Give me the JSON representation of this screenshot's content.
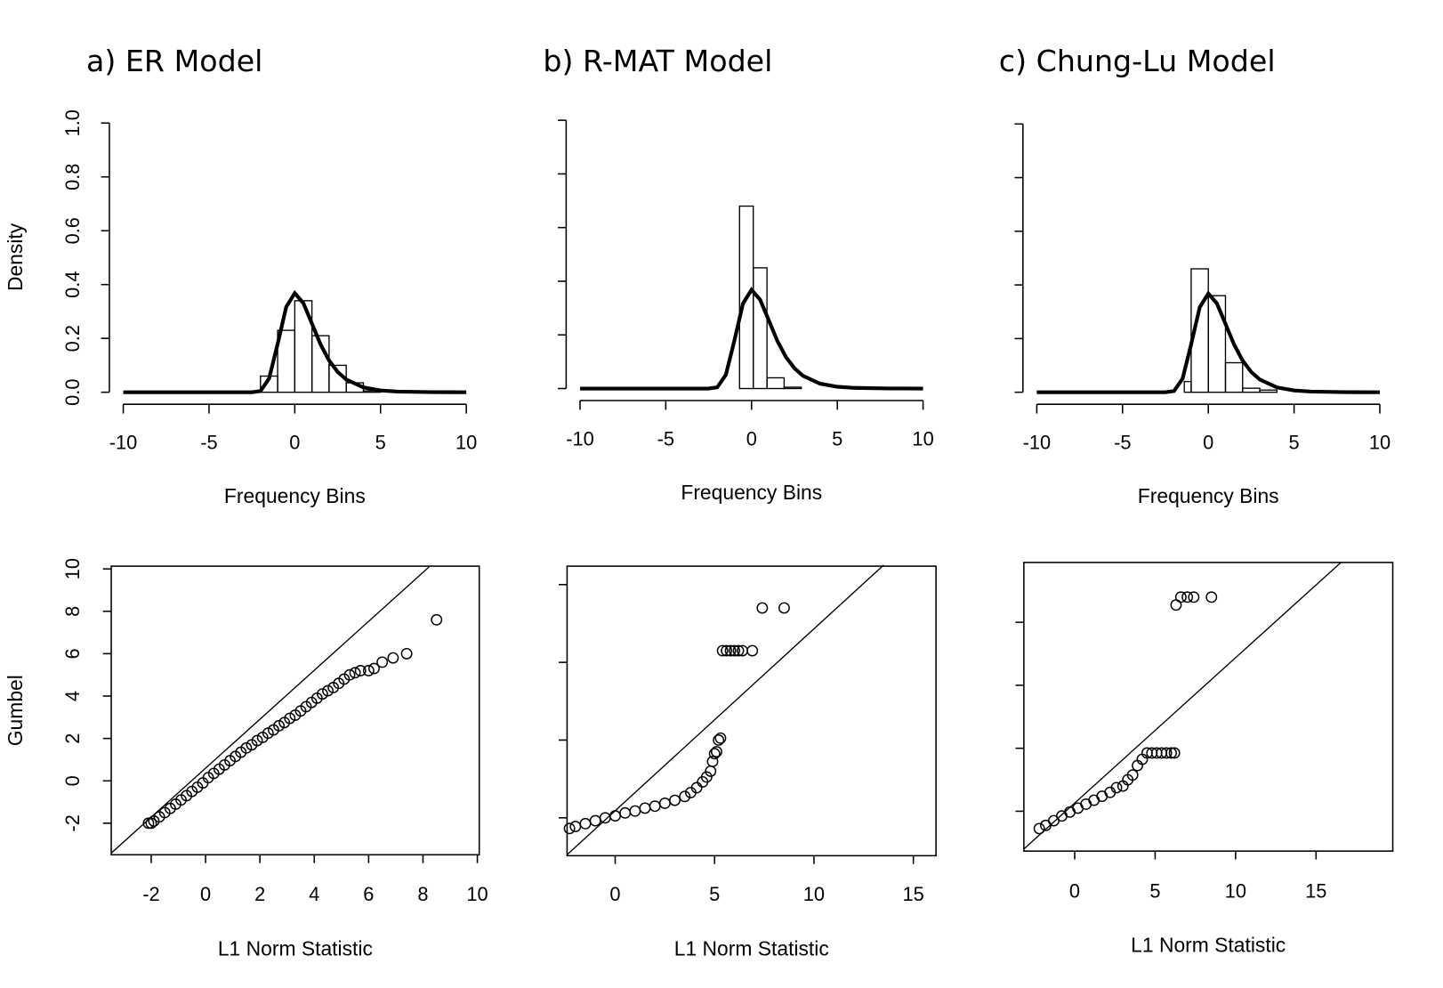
{
  "chart_data": [
    {
      "type": "histogram",
      "title": "a)  ER Model",
      "xlabel": "Frequency Bins",
      "ylabel": "Density",
      "bins": [
        -2,
        -1,
        0,
        1,
        2,
        3,
        4,
        5
      ],
      "counts": [
        0.06,
        0.23,
        0.34,
        0.21,
        0.1,
        0.035,
        0.005
      ],
      "curve": {
        "x": [
          -10,
          -3,
          -2.5,
          -2,
          -1.5,
          -1,
          -0.5,
          0,
          0.5,
          1,
          1.5,
          2,
          2.5,
          3,
          4,
          5,
          6,
          8,
          10
        ],
        "y": [
          0,
          0,
          0.0001,
          0.0046,
          0.0507,
          0.179,
          0.317,
          0.368,
          0.331,
          0.255,
          0.178,
          0.118,
          0.0756,
          0.0474,
          0.018,
          0.0067,
          0.0025,
          0.0003,
          0
        ]
      },
      "xlim": [
        -10,
        10
      ],
      "xticks": [
        -10,
        -5,
        0,
        5,
        10
      ],
      "ylim": [
        0,
        1
      ],
      "yticks": [
        {
          "value": 0,
          "label": "0.0"
        },
        0.2,
        0.4,
        0.6,
        0.8,
        {
          "value": 1,
          "label": "1.0"
        }
      ],
      "ytick_labels": true
    },
    {
      "type": "histogram",
      "title": "b) R-MAT Model",
      "xlabel": "Frequency Bins",
      "bins": [
        -0.7,
        0.1,
        0.9,
        1.9,
        2.9
      ],
      "counts": [
        0.68,
        0.45,
        0.04,
        0.005
      ],
      "curve": {
        "x": [
          -10,
          -3,
          -2.5,
          -2,
          -1.5,
          -1,
          -0.5,
          0,
          0.5,
          1,
          1.5,
          2,
          2.5,
          3,
          4,
          5,
          6,
          8,
          10
        ],
        "y": [
          0,
          0,
          0.0001,
          0.0046,
          0.0507,
          0.179,
          0.317,
          0.368,
          0.331,
          0.255,
          0.178,
          0.118,
          0.0756,
          0.0474,
          0.018,
          0.0067,
          0.0025,
          0.0003,
          0
        ]
      },
      "xlim": [
        -10,
        10
      ],
      "xticks": [
        -10,
        -5,
        0,
        5,
        10
      ],
      "ylim": [
        0,
        1
      ],
      "yticks": [
        0,
        0.2,
        0.4,
        0.6,
        0.8,
        1
      ],
      "ytick_labels": false
    },
    {
      "type": "histogram",
      "title": "c) Chung-Lu Model",
      "xlabel": "Frequency Bins",
      "bins": [
        -1.4,
        -1,
        0,
        1,
        2,
        3,
        4
      ],
      "counts": [
        0.04,
        0.46,
        0.36,
        0.11,
        0.015,
        0.008
      ],
      "curve": {
        "x": [
          -10,
          -3,
          -2.5,
          -2,
          -1.5,
          -1,
          -0.5,
          0,
          0.5,
          1,
          1.5,
          2,
          2.5,
          3,
          4,
          5,
          6,
          8,
          10
        ],
        "y": [
          0,
          0,
          0.0001,
          0.0046,
          0.0507,
          0.179,
          0.317,
          0.368,
          0.331,
          0.255,
          0.178,
          0.118,
          0.0756,
          0.0474,
          0.018,
          0.0067,
          0.0025,
          0.0003,
          0
        ]
      },
      "xlim": [
        -10,
        10
      ],
      "xticks": [
        -10,
        -5,
        0,
        5,
        10
      ],
      "ylim": [
        0,
        1
      ],
      "yticks": [
        0,
        0.2,
        0.4,
        0.6,
        0.8,
        1
      ],
      "ytick_labels": false
    },
    {
      "type": "scatter",
      "xlabel": "L1 Norm Statistic",
      "ylabel": "Gumbel",
      "x": [
        -2.1,
        -2.0,
        -1.9,
        -1.7,
        -1.5,
        -1.3,
        -1.1,
        -0.9,
        -0.7,
        -0.5,
        -0.3,
        -0.1,
        0.1,
        0.3,
        0.5,
        0.7,
        0.9,
        1.1,
        1.3,
        1.5,
        1.7,
        1.9,
        2.1,
        2.3,
        2.5,
        2.7,
        2.9,
        3.1,
        3.3,
        3.5,
        3.7,
        3.9,
        4.1,
        4.3,
        4.5,
        4.7,
        4.9,
        5.1,
        5.3,
        5.5,
        5.7,
        6.0,
        6.2,
        6.5,
        6.9,
        7.4,
        8.5
      ],
      "y": [
        -2.0,
        -2.0,
        -1.9,
        -1.7,
        -1.5,
        -1.3,
        -1.1,
        -0.9,
        -0.7,
        -0.5,
        -0.3,
        -0.1,
        0.15,
        0.35,
        0.55,
        0.75,
        0.95,
        1.15,
        1.35,
        1.55,
        1.7,
        1.9,
        2.05,
        2.25,
        2.4,
        2.6,
        2.75,
        2.95,
        3.1,
        3.3,
        3.5,
        3.7,
        3.9,
        4.1,
        4.25,
        4.4,
        4.6,
        4.8,
        5.0,
        5.1,
        5.2,
        5.2,
        5.3,
        5.6,
        5.8,
        6.0,
        7.6
      ],
      "ref_line": {
        "x": [
          -3.46,
          8.23
        ],
        "y": [
          -3.4,
          10.1
        ]
      },
      "xlim": [
        -3.47,
        10.07
      ],
      "xticks": [
        -2,
        0,
        2,
        4,
        6,
        8,
        10
      ],
      "ylim": [
        -3.49,
        10.13
      ],
      "yticks": [
        -2,
        0,
        2,
        4,
        6,
        8,
        10
      ],
      "ytick_labels": true
    },
    {
      "type": "scatter",
      "xlabel": "L1 Norm Statistic",
      "x": [
        -2.3,
        -2.0,
        -1.5,
        -1.0,
        -0.5,
        0,
        0.5,
        1.0,
        1.5,
        2.0,
        2.5,
        3.0,
        3.5,
        3.8,
        4.1,
        4.4,
        4.6,
        4.8,
        4.9,
        5.0,
        5.1,
        5.2,
        5.3,
        5.4,
        5.6,
        5.8,
        6.0,
        6.2,
        6.4,
        6.9,
        7.4,
        8.5
      ],
      "y": [
        -2.55,
        -2.45,
        -2.3,
        -2.15,
        -2.0,
        -1.9,
        -1.75,
        -1.65,
        -1.5,
        -1.4,
        -1.25,
        -1.1,
        -0.9,
        -0.7,
        -0.45,
        -0.15,
        0.1,
        0.4,
        0.9,
        1.3,
        1.4,
        2.0,
        2.1,
        6.6,
        6.6,
        6.6,
        6.6,
        6.6,
        6.6,
        6.6,
        8.8,
        8.8
      ],
      "ref_line": {
        "x": [
          -2.42,
          13.5
        ],
        "y": [
          -3.9,
          11
        ]
      },
      "xlim": [
        -2.42,
        16.14
      ],
      "xticks": [
        0,
        5,
        10,
        15
      ],
      "ylim": [
        -3.95,
        10.95
      ],
      "yticks": [
        -2,
        2,
        6,
        10
      ],
      "ytick_labels": false
    },
    {
      "type": "scatter",
      "xlabel": "L1 Norm Statistic",
      "x": [
        -2.2,
        -1.8,
        -1.3,
        -0.8,
        -0.3,
        0.2,
        0.7,
        1.2,
        1.7,
        2.2,
        2.6,
        3.0,
        3.3,
        3.6,
        3.9,
        4.2,
        4.5,
        4.8,
        5.1,
        5.4,
        5.7,
        6.0,
        6.2,
        6.3,
        6.6,
        7.0,
        7.4,
        8.5
      ],
      "y": [
        -3.1,
        -2.9,
        -2.6,
        -2.3,
        -2.05,
        -1.8,
        -1.55,
        -1.3,
        -1.05,
        -0.8,
        -0.5,
        -0.4,
        0.0,
        0.3,
        0.9,
        1.3,
        1.7,
        1.7,
        1.7,
        1.7,
        1.7,
        1.7,
        1.7,
        11.1,
        11.6,
        11.6,
        11.6,
        11.6
      ],
      "ref_line": {
        "x": [
          -3.16,
          16.55
        ],
        "y": [
          -4.4,
          13.8
        ]
      },
      "xlim": [
        -3.16,
        19.77
      ],
      "xticks": [
        0,
        5,
        10,
        15
      ],
      "ylim": [
        -4.53,
        13.8
      ],
      "yticks": [
        -2,
        2,
        6,
        10
      ],
      "ytick_labels": false
    }
  ]
}
